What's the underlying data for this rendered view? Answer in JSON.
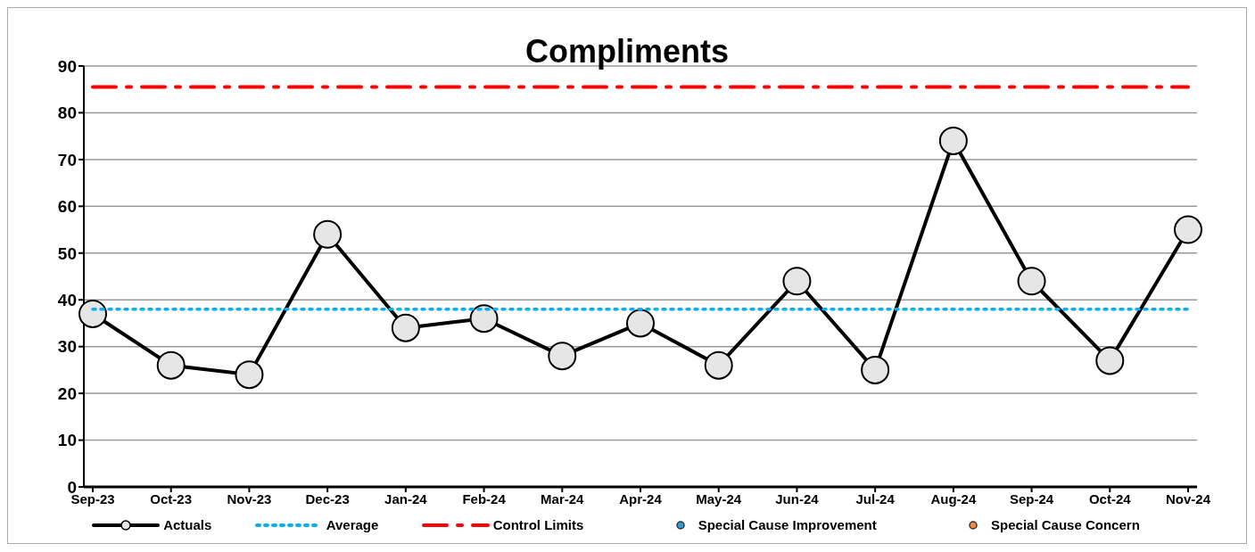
{
  "chart_data": {
    "type": "line",
    "title": "Compliments",
    "categories": [
      "Sep-23",
      "Oct-23",
      "Nov-23",
      "Dec-23",
      "Jan-24",
      "Feb-24",
      "Mar-24",
      "Apr-24",
      "May-24",
      "Jun-24",
      "Jul-24",
      "Aug-24",
      "Sep-24",
      "Oct-24",
      "Nov-24"
    ],
    "series": [
      {
        "name": "Actuals",
        "color": "#000000",
        "marker": "circle",
        "line_style": "solid",
        "values": [
          37,
          26,
          24,
          54,
          34,
          36,
          28,
          35,
          26,
          44,
          25,
          74,
          44,
          27,
          55
        ]
      },
      {
        "name": "Average",
        "color": "#00b0f0",
        "marker": "none",
        "line_style": "dotted",
        "values": [
          38,
          38,
          38,
          38,
          38,
          38,
          38,
          38,
          38,
          38,
          38,
          38,
          38,
          38,
          38
        ]
      },
      {
        "name": "Control Limits",
        "color": "#ff0000",
        "marker": "none",
        "line_style": "dashed",
        "values": [
          85.5,
          85.5,
          85.5,
          85.5,
          85.5,
          85.5,
          85.5,
          85.5,
          85.5,
          85.5,
          85.5,
          85.5,
          85.5,
          85.5,
          85.5
        ]
      },
      {
        "name": "Special Cause Improvement",
        "type": "scatter",
        "color": "#2e9fd6",
        "marker": "circle",
        "values": [
          null,
          null,
          null,
          null,
          null,
          null,
          null,
          null,
          null,
          null,
          null,
          null,
          null,
          null,
          null
        ]
      },
      {
        "name": "Special Cause Concern",
        "type": "scatter",
        "color": "#f4883c",
        "marker": "circle",
        "values": [
          null,
          null,
          null,
          null,
          null,
          null,
          null,
          null,
          null,
          null,
          null,
          null,
          null,
          null,
          null
        ]
      }
    ],
    "ylim": [
      0,
      90
    ],
    "yticks": [
      0,
      10,
      20,
      30,
      40,
      50,
      60,
      70,
      80,
      90
    ],
    "grid": "y",
    "legend": "bottom"
  }
}
